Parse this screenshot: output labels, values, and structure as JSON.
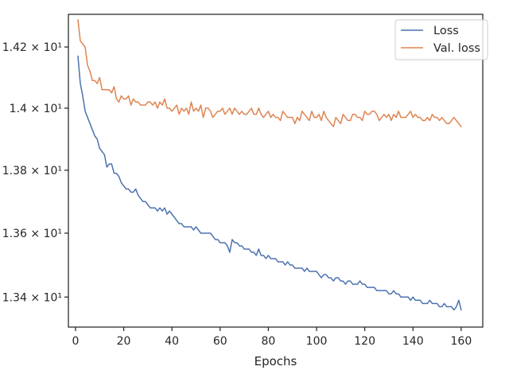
{
  "chart_data": {
    "type": "line",
    "title": "",
    "xlabel": "Epochs",
    "ylabel": "",
    "xlim": [
      -2.95,
      168.95
    ],
    "ylim": [
      13.307,
      14.308
    ],
    "y_scale": "log",
    "grid": false,
    "legend_position": "top-right",
    "x_ticks": [
      0,
      20,
      40,
      60,
      80,
      100,
      120,
      140,
      160
    ],
    "x_tick_labels": [
      "0",
      "20",
      "40",
      "60",
      "80",
      "100",
      "120",
      "140",
      "160"
    ],
    "y_ticks": [
      13.4,
      13.6,
      13.8,
      14.0,
      14.2
    ],
    "y_tick_labels": [
      "1.34 × 10¹",
      "1.36 × 10¹",
      "1.38 × 10¹",
      "1.4 × 10¹",
      "1.42 × 10¹"
    ],
    "series": [
      {
        "name": "Loss",
        "color": "#4c72b0",
        "x_start": 1,
        "x_step": 1,
        "values": [
          14.17,
          14.08,
          14.04,
          13.99,
          13.97,
          13.95,
          13.93,
          13.91,
          13.9,
          13.87,
          13.86,
          13.85,
          13.81,
          13.82,
          13.82,
          13.79,
          13.79,
          13.78,
          13.76,
          13.75,
          13.74,
          13.74,
          13.73,
          13.73,
          13.74,
          13.72,
          13.71,
          13.7,
          13.7,
          13.69,
          13.68,
          13.68,
          13.68,
          13.67,
          13.68,
          13.67,
          13.68,
          13.66,
          13.67,
          13.66,
          13.65,
          13.64,
          13.63,
          13.63,
          13.62,
          13.62,
          13.62,
          13.62,
          13.61,
          13.62,
          13.61,
          13.6,
          13.6,
          13.6,
          13.6,
          13.6,
          13.59,
          13.58,
          13.58,
          13.57,
          13.57,
          13.57,
          13.56,
          13.54,
          13.58,
          13.57,
          13.57,
          13.56,
          13.56,
          13.55,
          13.55,
          13.55,
          13.54,
          13.54,
          13.53,
          13.55,
          13.53,
          13.53,
          13.52,
          13.53,
          13.52,
          13.52,
          13.52,
          13.51,
          13.51,
          13.51,
          13.5,
          13.51,
          13.5,
          13.5,
          13.49,
          13.49,
          13.49,
          13.49,
          13.48,
          13.49,
          13.48,
          13.48,
          13.48,
          13.48,
          13.47,
          13.46,
          13.47,
          13.47,
          13.46,
          13.46,
          13.45,
          13.46,
          13.46,
          13.45,
          13.45,
          13.44,
          13.45,
          13.45,
          13.44,
          13.44,
          13.44,
          13.45,
          13.44,
          13.44,
          13.43,
          13.43,
          13.43,
          13.43,
          13.42,
          13.42,
          13.42,
          13.42,
          13.42,
          13.41,
          13.41,
          13.42,
          13.41,
          13.41,
          13.4,
          13.4,
          13.4,
          13.4,
          13.39,
          13.4,
          13.39,
          13.39,
          13.39,
          13.38,
          13.38,
          13.38,
          13.39,
          13.38,
          13.38,
          13.38,
          13.37,
          13.37,
          13.38,
          13.37,
          13.37,
          13.37,
          13.36,
          13.37,
          13.39,
          13.36
        ]
      },
      {
        "name": "Val. loss",
        "color": "#dd8452",
        "x_start": 1,
        "x_step": 1,
        "values": [
          14.29,
          14.22,
          14.21,
          14.2,
          14.14,
          14.12,
          14.09,
          14.09,
          14.08,
          14.1,
          14.06,
          14.06,
          14.06,
          14.06,
          14.05,
          14.07,
          14.03,
          14.02,
          14.04,
          14.03,
          14.03,
          14.04,
          14.01,
          14.03,
          14.02,
          14.02,
          14.01,
          14.01,
          14.01,
          14.02,
          14.02,
          14.01,
          14.02,
          14.0,
          14.02,
          14.01,
          14.03,
          14.0,
          14.0,
          13.99,
          14.0,
          14.01,
          13.98,
          14.0,
          13.99,
          14.0,
          13.98,
          14.02,
          13.99,
          14.0,
          13.99,
          14.01,
          13.97,
          14.0,
          14.0,
          13.99,
          13.97,
          13.98,
          13.99,
          13.99,
          14.0,
          13.98,
          13.99,
          14.0,
          13.98,
          14.0,
          13.99,
          13.98,
          13.99,
          13.98,
          13.98,
          13.99,
          14.0,
          13.98,
          13.98,
          14.0,
          13.98,
          13.97,
          13.98,
          13.99,
          13.97,
          13.98,
          13.97,
          13.97,
          13.96,
          13.99,
          13.98,
          13.97,
          13.97,
          13.97,
          13.95,
          13.97,
          13.96,
          13.99,
          13.98,
          13.97,
          13.96,
          13.99,
          13.97,
          13.97,
          13.98,
          13.96,
          13.99,
          13.97,
          13.96,
          13.95,
          13.94,
          13.97,
          13.96,
          13.95,
          13.98,
          13.97,
          13.96,
          13.96,
          13.98,
          13.98,
          13.97,
          13.97,
          13.96,
          13.99,
          13.98,
          13.98,
          13.99,
          13.99,
          13.98,
          13.96,
          13.97,
          13.98,
          13.97,
          13.98,
          13.96,
          13.98,
          13.97,
          13.99,
          13.97,
          13.97,
          13.97,
          13.98,
          13.99,
          13.97,
          13.98,
          13.97,
          13.97,
          13.96,
          13.96,
          13.97,
          13.96,
          13.98,
          13.97,
          13.97,
          13.96,
          13.97,
          13.96,
          13.95,
          13.95,
          13.96,
          13.97,
          13.96,
          13.95,
          13.94
        ]
      }
    ]
  }
}
